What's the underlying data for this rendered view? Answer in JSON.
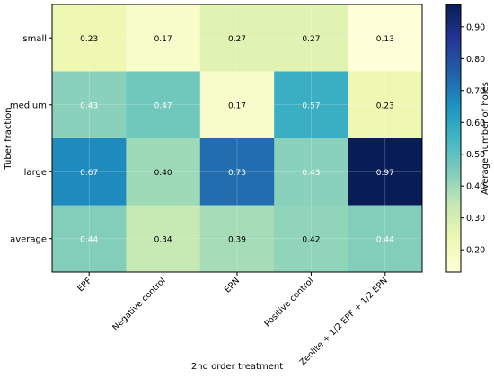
{
  "chart_data": {
    "type": "heatmap",
    "xlabel": "2nd order treatment",
    "ylabel": "Tuber fraction",
    "x_categories": [
      "EPF",
      "Negative control",
      "EPN",
      "Positive control",
      "Zeolite + 1/2 EPF + 1/2 EPN"
    ],
    "y_categories": [
      "small",
      "medium",
      "large",
      "average"
    ],
    "values": [
      [
        0.23,
        0.17,
        0.27,
        0.27,
        0.13
      ],
      [
        0.43,
        0.47,
        0.17,
        0.57,
        0.23
      ],
      [
        0.67,
        0.4,
        0.73,
        0.43,
        0.97
      ],
      [
        0.44,
        0.34,
        0.39,
        0.42,
        0.44
      ]
    ],
    "value_labels": [
      [
        "0.23",
        "0.17",
        "0.27",
        "0.27",
        "0.13"
      ],
      [
        "0.43",
        "0.47",
        "0.17",
        "0.57",
        "0.23"
      ],
      [
        "0.67",
        "0.40",
        "0.73",
        "0.43",
        "0.97"
      ],
      [
        "0.44",
        "0.34",
        "0.39",
        "0.42",
        "0.44"
      ]
    ],
    "colorbar": {
      "label": "Average number of holes",
      "range": [
        0.13,
        0.97
      ],
      "ticks": [
        "0.20",
        "0.30",
        "0.40",
        "0.50",
        "0.60",
        "0.70",
        "0.80",
        "0.90"
      ],
      "colormap": "YlGnBu"
    },
    "grid": true
  }
}
